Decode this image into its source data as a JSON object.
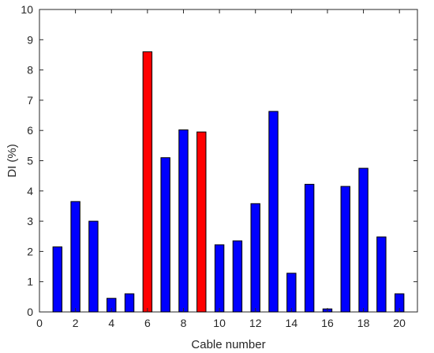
{
  "chart_data": {
    "type": "bar",
    "xlabel": "Cable number",
    "ylabel": "DI (%)",
    "xlim": [
      0,
      21
    ],
    "ylim": [
      0,
      10
    ],
    "x_ticks": [
      0,
      2,
      4,
      6,
      8,
      10,
      12,
      14,
      16,
      18,
      20
    ],
    "y_ticks": [
      0,
      1,
      2,
      3,
      4,
      5,
      6,
      7,
      8,
      9,
      10
    ],
    "grid": false,
    "categories": [
      1,
      2,
      3,
      4,
      5,
      6,
      7,
      8,
      9,
      10,
      11,
      12,
      13,
      14,
      15,
      16,
      17,
      18,
      19,
      20
    ],
    "values": [
      2.15,
      3.65,
      3.0,
      0.45,
      0.6,
      8.6,
      5.1,
      6.02,
      5.95,
      2.22,
      2.35,
      3.58,
      6.63,
      1.28,
      4.22,
      0.1,
      4.15,
      4.75,
      2.48,
      0.6
    ],
    "bar_colors": [
      "#0000ff",
      "#0000ff",
      "#0000ff",
      "#0000ff",
      "#0000ff",
      "#ff0000",
      "#0000ff",
      "#0000ff",
      "#ff0000",
      "#0000ff",
      "#0000ff",
      "#0000ff",
      "#0000ff",
      "#0000ff",
      "#0000ff",
      "#0000ff",
      "#0000ff",
      "#0000ff",
      "#0000ff",
      "#0000ff"
    ],
    "edge_color": "#000000"
  }
}
